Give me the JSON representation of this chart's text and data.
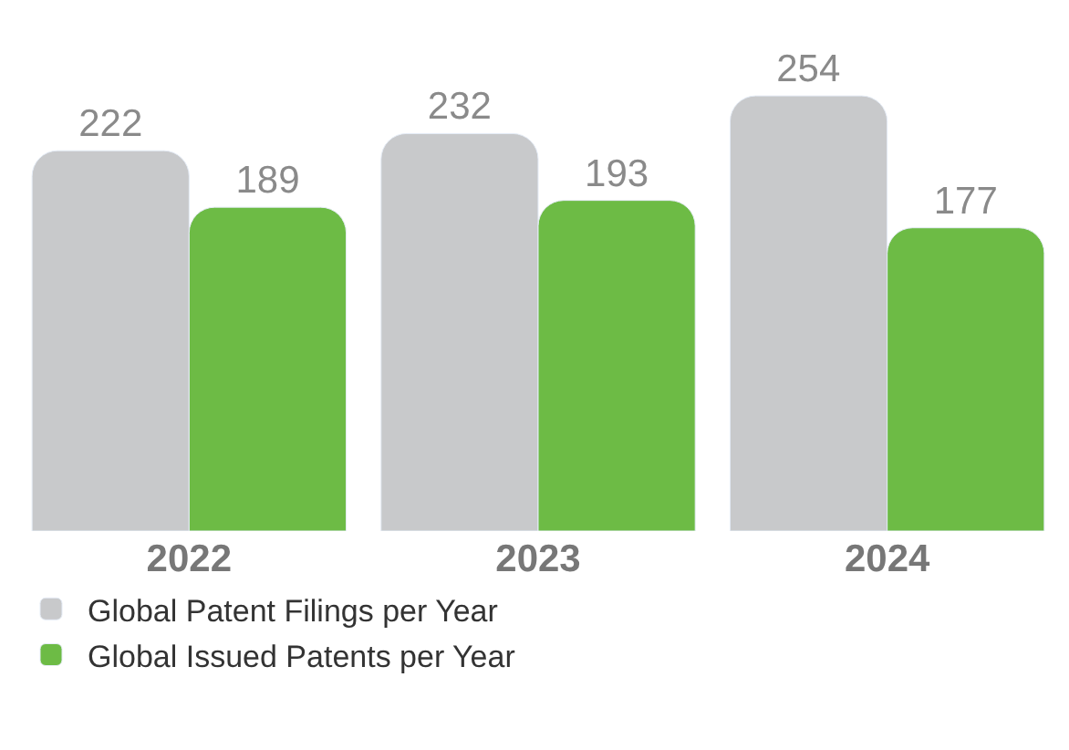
{
  "chart_data": {
    "type": "bar",
    "categories": [
      "2022",
      "2023",
      "2024"
    ],
    "series": [
      {
        "name": "Global Patent Filings per Year",
        "color": "#c8c9cb",
        "values": [
          222,
          232,
          254
        ]
      },
      {
        "name": "Global Issued Patents per Year",
        "color": "#6dbb45",
        "values": [
          189,
          193,
          177
        ]
      }
    ],
    "data_labels": true,
    "legend": "bottom"
  }
}
